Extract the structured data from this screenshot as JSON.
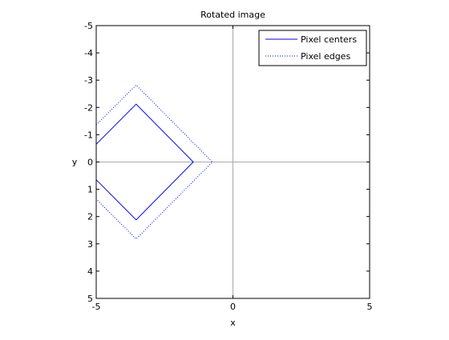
{
  "chart_data": {
    "type": "line",
    "title": "Rotated image",
    "xlabel": "x",
    "ylabel": "y",
    "xlim": [
      -5,
      5
    ],
    "ylim": [
      -5,
      5
    ],
    "y_reversed": true,
    "grid": false,
    "x_ticks": [
      -5,
      0,
      5
    ],
    "y_ticks": [
      -5,
      -4,
      -3,
      -2,
      -1,
      0,
      1,
      2,
      3,
      4,
      5
    ],
    "reference_lines": {
      "x": 0,
      "y": 0,
      "color": "#aaaaaa"
    },
    "legend": {
      "placement": "top-right"
    },
    "series": [
      {
        "name": "Pixel centers",
        "style": "solid",
        "color": "#0000ff",
        "x": [
          -5.0,
          -3.54,
          -1.45,
          -3.54,
          -5.0
        ],
        "y": [
          -0.65,
          -2.12,
          0.0,
          2.12,
          0.65
        ]
      },
      {
        "name": "Pixel edges",
        "style": "dotted",
        "color": "#0000ff",
        "x": [
          -5.0,
          -3.54,
          -0.75,
          -3.54,
          -5.0
        ],
        "y": [
          -1.36,
          -2.82,
          0.0,
          2.82,
          1.36
        ]
      }
    ]
  }
}
